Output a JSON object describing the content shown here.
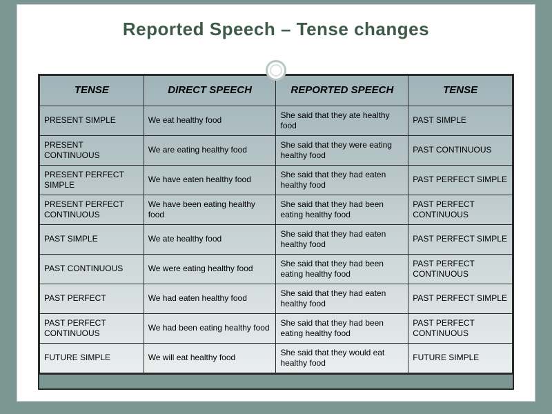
{
  "title": "Reported Speech – Tense changes",
  "columns": [
    "TENSE",
    "DIRECT SPEECH",
    "REPORTED SPEECH",
    "TENSE"
  ],
  "rows": [
    {
      "t1": "PRESENT SIMPLE",
      "direct": "We eat healthy food",
      "reported": "She said that they ate healthy food",
      "t2": "PAST SIMPLE"
    },
    {
      "t1": "PRESENT CONTINUOUS",
      "direct": "We are eating healthy food",
      "reported": "She said that they were eating healthy food",
      "t2": "PAST CONTINUOUS"
    },
    {
      "t1": "PRESENT PERFECT SIMPLE",
      "direct": "We have eaten healthy food",
      "reported": "She said that they had eaten healthy food",
      "t2": "PAST PERFECT SIMPLE"
    },
    {
      "t1": "PRESENT PERFECT CONTINUOUS",
      "direct": "We have been eating healthy food",
      "reported": "She said that they had been eating  healthy food",
      "t2": "PAST PERFECT CONTINUOUS"
    },
    {
      "t1": "PAST SIMPLE",
      "direct": "We ate healthy food",
      "reported": "She said that they had eaten healthy food",
      "t2": "PAST PERFECT SIMPLE"
    },
    {
      "t1": "PAST CONTINUOUS",
      "direct": "We were eating healthy food",
      "reported": "She said that they had been eating healthy food",
      "t2": "PAST PERFECT CONTINUOUS"
    },
    {
      "t1": "PAST PERFECT",
      "direct": "We had eaten healthy food",
      "reported": "She said that they had eaten healthy food",
      "t2": "PAST PERFECT SIMPLE"
    },
    {
      "t1": "PAST PERFECT CONTINUOUS",
      "direct": "We had been eating healthy food",
      "reported": "She said that they had been eating  healthy food",
      "t2": "PAST PERFECT CONTINUOUS"
    },
    {
      "t1": "FUTURE SIMPLE",
      "direct": "We will eat healthy food",
      "reported": "She said that they would eat healthy food",
      "t2": "FUTURE SIMPLE"
    }
  ],
  "colors": {
    "page_bg": "#7c9691",
    "slide_bg": "#ffffff",
    "title_color": "#3e5a4a",
    "border_color": "#2a2a2a",
    "gradient_top": "#9fb3b8",
    "gradient_mid": "#c3cfd1",
    "gradient_bottom": "#eef1f1"
  }
}
